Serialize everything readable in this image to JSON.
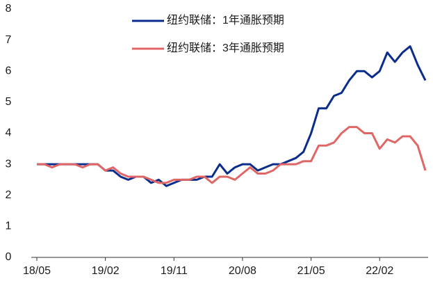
{
  "chart_data": {
    "type": "line",
    "categories": [
      "18/05",
      null,
      null,
      null,
      null,
      null,
      null,
      null,
      null,
      "19/02",
      null,
      null,
      null,
      null,
      null,
      null,
      null,
      null,
      "19/11",
      null,
      null,
      null,
      null,
      null,
      null,
      null,
      null,
      "20/08",
      null,
      null,
      null,
      null,
      null,
      null,
      null,
      null,
      "21/05",
      null,
      null,
      null,
      null,
      null,
      null,
      null,
      null,
      "22/02",
      null,
      null,
      null,
      null,
      null,
      null
    ],
    "series": [
      {
        "name": "纽约联储：1年通胀预期",
        "color": "#0a2d8c",
        "values": [
          3.0,
          3.0,
          3.0,
          3.0,
          3.0,
          3.0,
          3.0,
          3.0,
          3.0,
          2.8,
          2.8,
          2.6,
          2.5,
          2.6,
          2.6,
          2.4,
          2.5,
          2.3,
          2.4,
          2.5,
          2.5,
          2.5,
          2.6,
          2.6,
          3.0,
          2.7,
          2.9,
          3.0,
          3.0,
          2.8,
          2.9,
          3.0,
          3.0,
          3.1,
          3.2,
          3.4,
          4.0,
          4.8,
          4.8,
          5.2,
          5.3,
          5.7,
          6.0,
          6.0,
          5.8,
          6.0,
          6.6,
          6.3,
          6.6,
          6.8,
          6.2,
          5.7
        ]
      },
      {
        "name": "纽约联储：3年通胀预期",
        "color": "#e06666",
        "values": [
          3.0,
          3.0,
          2.9,
          3.0,
          3.0,
          3.0,
          2.9,
          3.0,
          3.0,
          2.8,
          2.9,
          2.7,
          2.6,
          2.6,
          2.6,
          2.5,
          2.4,
          2.4,
          2.5,
          2.5,
          2.5,
          2.6,
          2.6,
          2.4,
          2.6,
          2.6,
          2.5,
          2.7,
          2.9,
          2.7,
          2.7,
          2.8,
          3.0,
          3.0,
          3.0,
          3.1,
          3.1,
          3.6,
          3.6,
          3.7,
          4.0,
          4.2,
          4.2,
          4.0,
          4.0,
          3.5,
          3.8,
          3.7,
          3.9,
          3.9,
          3.6,
          2.8
        ]
      }
    ],
    "ylim": [
      0,
      8
    ],
    "yticks": [
      0,
      1,
      2,
      3,
      4,
      5,
      6,
      7,
      8
    ],
    "legend": "top"
  }
}
